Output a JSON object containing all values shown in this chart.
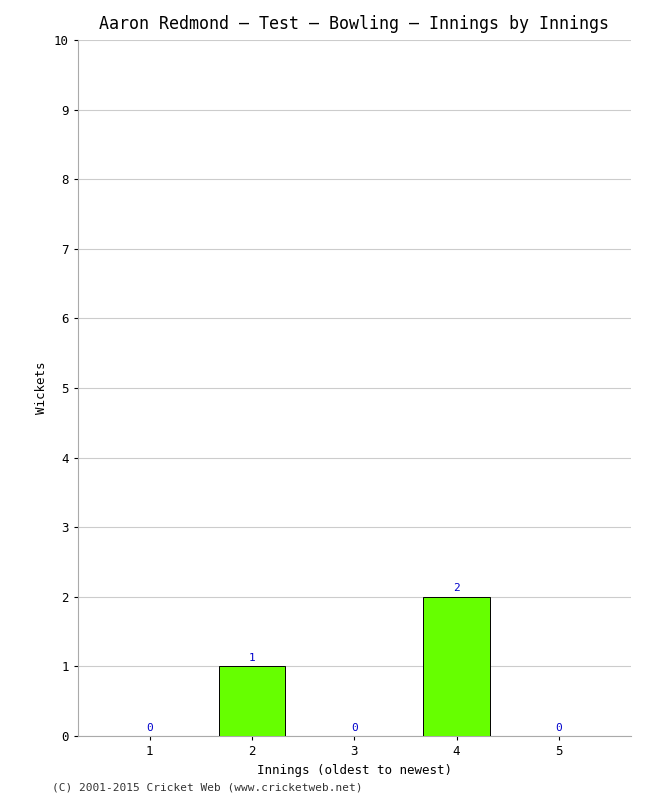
{
  "title": "Aaron Redmond – Test – Bowling – Innings by Innings",
  "xlabel": "Innings (oldest to newest)",
  "ylabel": "Wickets",
  "categories": [
    1,
    2,
    3,
    4,
    5
  ],
  "values": [
    0,
    1,
    0,
    2,
    0
  ],
  "bar_color": "#66ff00",
  "bar_edge_color": "#000000",
  "ylim": [
    0,
    10
  ],
  "yticks": [
    0,
    1,
    2,
    3,
    4,
    5,
    6,
    7,
    8,
    9,
    10
  ],
  "xticks": [
    1,
    2,
    3,
    4,
    5
  ],
  "background_color": "#ffffff",
  "grid_color": "#cccccc",
  "label_color": "#0000cc",
  "title_fontsize": 12,
  "axis_label_fontsize": 9,
  "tick_fontsize": 9,
  "annotation_fontsize": 8,
  "footer": "(C) 2001-2015 Cricket Web (www.cricketweb.net)",
  "footer_fontsize": 8
}
